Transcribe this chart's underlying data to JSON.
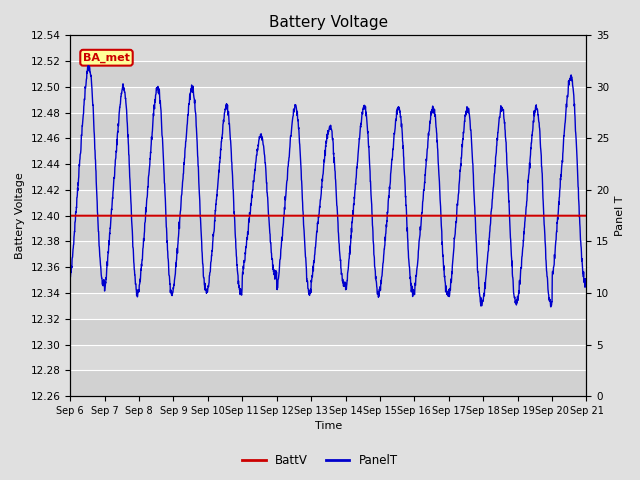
{
  "title": "Battery Voltage",
  "xlabel": "Time",
  "ylabel_left": "Battery Voltage",
  "ylabel_right": "Panel T",
  "ylim_left": [
    12.26,
    12.54
  ],
  "ylim_right": [
    0,
    35
  ],
  "yticks_left": [
    12.26,
    12.28,
    12.3,
    12.32,
    12.34,
    12.36,
    12.38,
    12.4,
    12.42,
    12.44,
    12.46,
    12.48,
    12.5,
    12.52,
    12.54
  ],
  "yticks_right": [
    0,
    5,
    10,
    15,
    20,
    25,
    30,
    35
  ],
  "xtick_labels": [
    "Sep 6",
    "Sep 7",
    "Sep 8",
    "Sep 9",
    "Sep 10",
    "Sep 11",
    "Sep 12",
    "Sep 13",
    "Sep 14",
    "Sep 15",
    "Sep 16",
    "Sep 17",
    "Sep 18",
    "Sep 19",
    "Sep 20",
    "Sep 21"
  ],
  "battv_value": 12.4,
  "battv_color": "#cc0000",
  "panelt_color": "#0000cc",
  "background_color": "#e0e0e0",
  "plot_bg_color": "#d8d8d8",
  "grid_color": "#ffffff",
  "annotation_text": "BA_met",
  "annotation_bg": "#ffff99",
  "annotation_border": "#cc0000",
  "annotation_text_color": "#cc0000",
  "legend_battv": "BattV",
  "legend_panelt": "PanelT",
  "num_days": 15,
  "title_fontsize": 11,
  "axis_label_fontsize": 8,
  "tick_fontsize": 7.5
}
